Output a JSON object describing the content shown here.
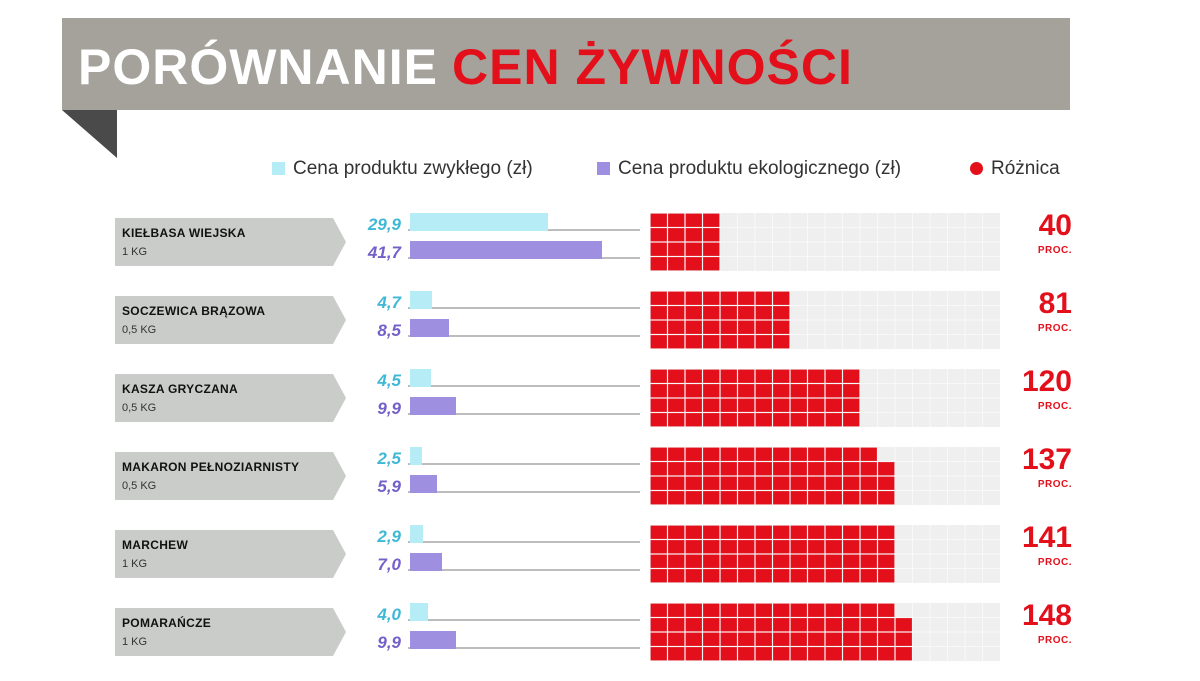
{
  "title": {
    "part1": "PORÓWNANIE",
    "part2": "CEN ŻYWNOŚCI"
  },
  "colors": {
    "regular": "#b6ecf5",
    "regular_text": "#3fb8d6",
    "eco": "#9e8fe0",
    "eco_text": "#7460c9",
    "difference": "#e3101b",
    "grid_bg": "#efefef",
    "banner": "#a5a29c"
  },
  "legend": {
    "regular": "Cena produktu zwykłego (zł)",
    "eco": "Cena produktu ekologicznego (zł)",
    "difference": "Różnica"
  },
  "chart_data": {
    "type": "bar",
    "title": "PORÓWNANIE CEN ŻYWNOŚCI",
    "categories": [
      "Kiełbasa wiejska",
      "Soczewica brązowa",
      "Kasza gryczana",
      "Makaron pełnoziarnisty",
      "Marchew",
      "Pomarańcze"
    ],
    "units": [
      "1 KG",
      "0,5 KG",
      "0,5 KG",
      "0,5 KG",
      "1 KG",
      "1 KG"
    ],
    "series": [
      {
        "name": "Cena produktu zwykłego (zł)",
        "values": [
          29.9,
          4.7,
          4.5,
          2.5,
          2.9,
          4.0
        ],
        "labels": [
          "29,9",
          "4,7",
          "4,5",
          "2,5",
          "2,9",
          "4,0"
        ]
      },
      {
        "name": "Cena produktu ekologicznego (zł)",
        "values": [
          41.7,
          8.5,
          9.9,
          5.9,
          7.0,
          9.9
        ],
        "labels": [
          "41,7",
          "8,5",
          "9,9",
          "5,9",
          "7,0",
          "9,9"
        ]
      },
      {
        "name": "Różnica",
        "values": [
          40,
          81,
          120,
          137,
          141,
          148
        ],
        "unit_label": "PROC."
      }
    ],
    "legend_position": "top-right"
  }
}
